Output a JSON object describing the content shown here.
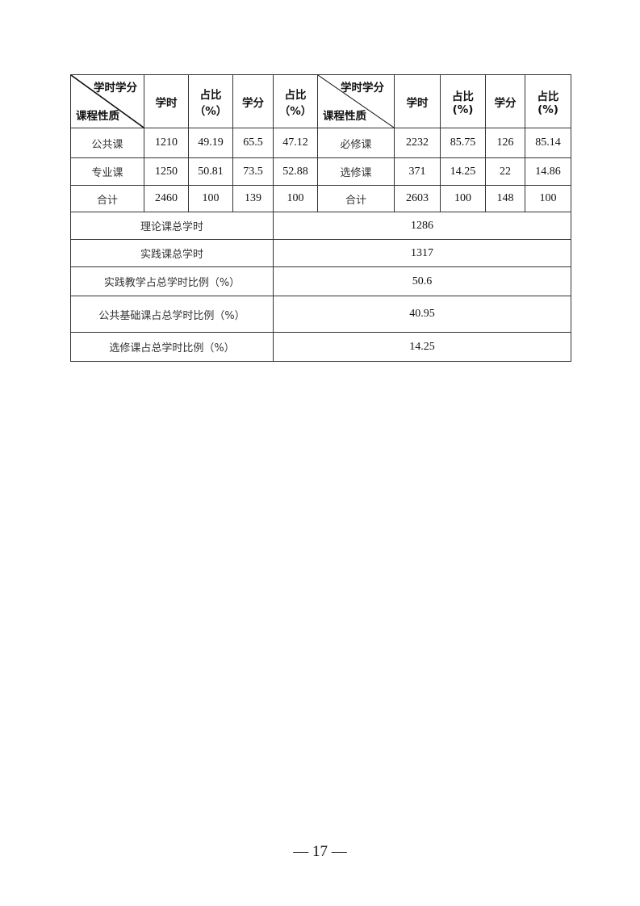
{
  "table": {
    "header_diag_top": "学时学分",
    "header_diag_bottom": "课程性质",
    "header_cols": [
      "学时",
      "占比\n（%）",
      "学分",
      "占比\n（%）"
    ],
    "header_cols_right": [
      "学时",
      "占比\n(%)",
      "学分",
      "占比\n(%)"
    ],
    "rows": [
      {
        "left": [
          "公共课",
          "1210",
          "49.19",
          "65.5",
          "47.12"
        ],
        "right": [
          "必修课",
          "2232",
          "85.75",
          "126",
          "85.14"
        ]
      },
      {
        "left": [
          "专业课",
          "1250",
          "50.81",
          "73.5",
          "52.88"
        ],
        "right": [
          "选修课",
          "371",
          "14.25",
          "22",
          "14.86"
        ]
      },
      {
        "left": [
          "合计",
          "2460",
          "100",
          "139",
          "100"
        ],
        "right": [
          "合计",
          "2603",
          "100",
          "148",
          "100"
        ]
      }
    ],
    "summary": [
      {
        "label": "理论课总学时",
        "value": "1286"
      },
      {
        "label": "实践课总学时",
        "value": "1317"
      },
      {
        "label": "实践教学占总学时比例（%）",
        "value": "50.6"
      },
      {
        "label": "公共基础课占总学时比例（%）",
        "value": "40.95"
      },
      {
        "label": "选修课占总学时比例（%）",
        "value": "14.25"
      }
    ]
  },
  "page_number": "— 17 —"
}
